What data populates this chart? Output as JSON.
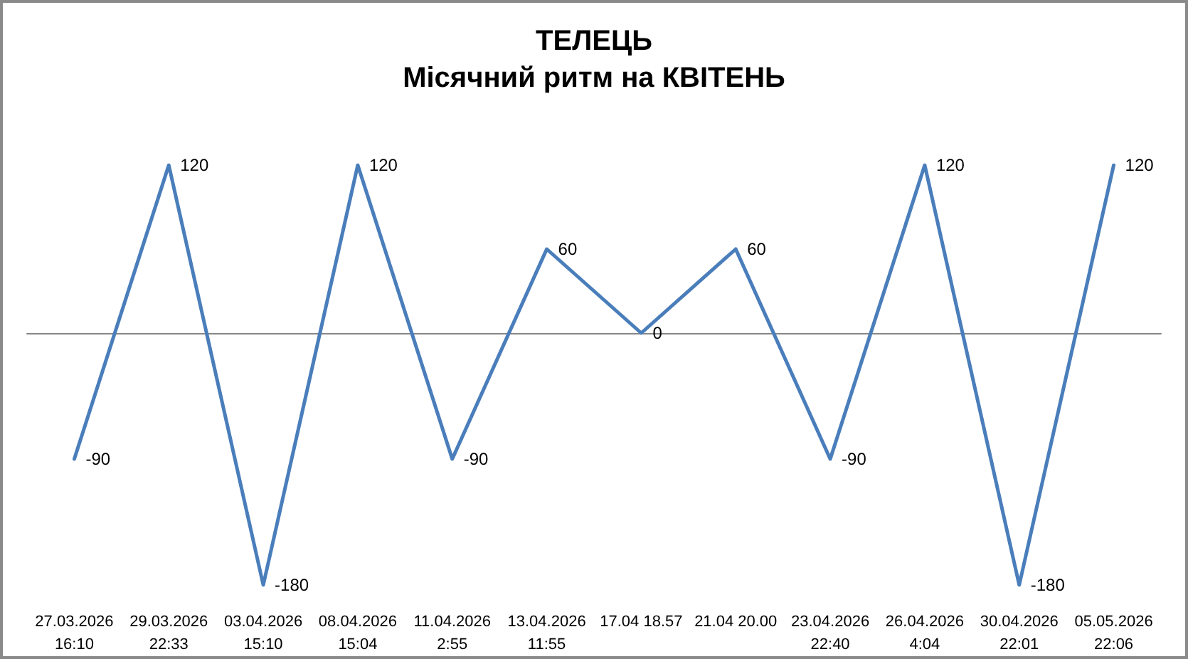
{
  "chart_data": {
    "type": "line",
    "title": "ТЕЛЕЦЬ",
    "subtitle": "Місячний ритм на КВІТЕНЬ",
    "categories": [
      "27.03.2026\n16:10",
      "29.03.2026\n22:33",
      "03.04.2026\n15:10",
      "08.04.2026\n15:04",
      "11.04.2026\n2:55",
      "13.04.2026\n11:55",
      "17.04 18.57",
      "21.04 20.00",
      "23.04.2026\n22:40",
      "26.04.2026\n4:04",
      "30.04.2026\n22:01",
      "05.05.2026\n22:06"
    ],
    "series": [
      {
        "color": "#4a7ebb",
        "values": [
          -90,
          120,
          -180,
          120,
          -90,
          60,
          0,
          60,
          -90,
          120,
          -180,
          120
        ]
      }
    ],
    "data_labels": true,
    "marker": "none",
    "line_style": "solid"
  }
}
